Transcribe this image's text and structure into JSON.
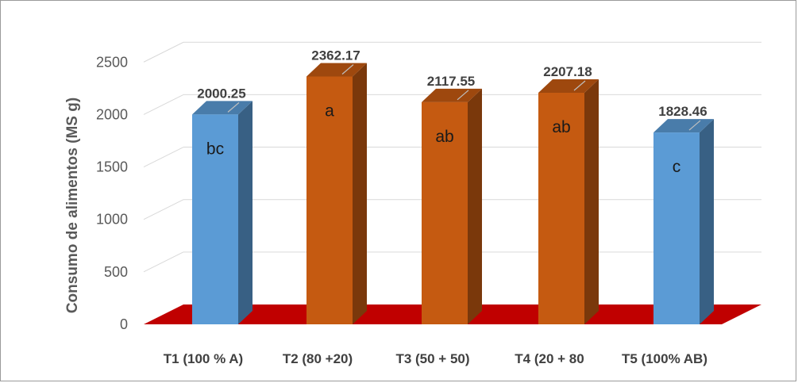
{
  "chart_data": {
    "type": "bar",
    "title": "",
    "xlabel": "",
    "ylabel": "Consumo de alimentos (MS g)",
    "categories": [
      "T1 (100 % A)",
      "T2 (80 +20)",
      "T3 (50 + 50)",
      "T4 (20 + 80",
      "T5 (100% AB)"
    ],
    "values": [
      2000.25,
      2362.17,
      2117.55,
      2207.18,
      1828.46
    ],
    "value_labels": [
      "2000.25",
      "2362.17",
      "2117.55",
      "2207.18",
      "1828.46"
    ],
    "significance_letters": [
      "bc",
      "a",
      "ab",
      "ab",
      "c"
    ],
    "ylim": [
      0,
      2500
    ],
    "yticks": [
      0,
      500,
      1000,
      1500,
      2000,
      2500
    ],
    "ytick_labels": [
      "0",
      "500",
      "1000",
      "1500",
      "2000",
      "2500"
    ],
    "grid": true,
    "legend": "none",
    "style": "3d-column",
    "bar_colors": [
      "#5b9bd5",
      "#c55a11",
      "#c55a11",
      "#c55a11",
      "#5b9bd5"
    ],
    "floor_color": "#c00000"
  }
}
